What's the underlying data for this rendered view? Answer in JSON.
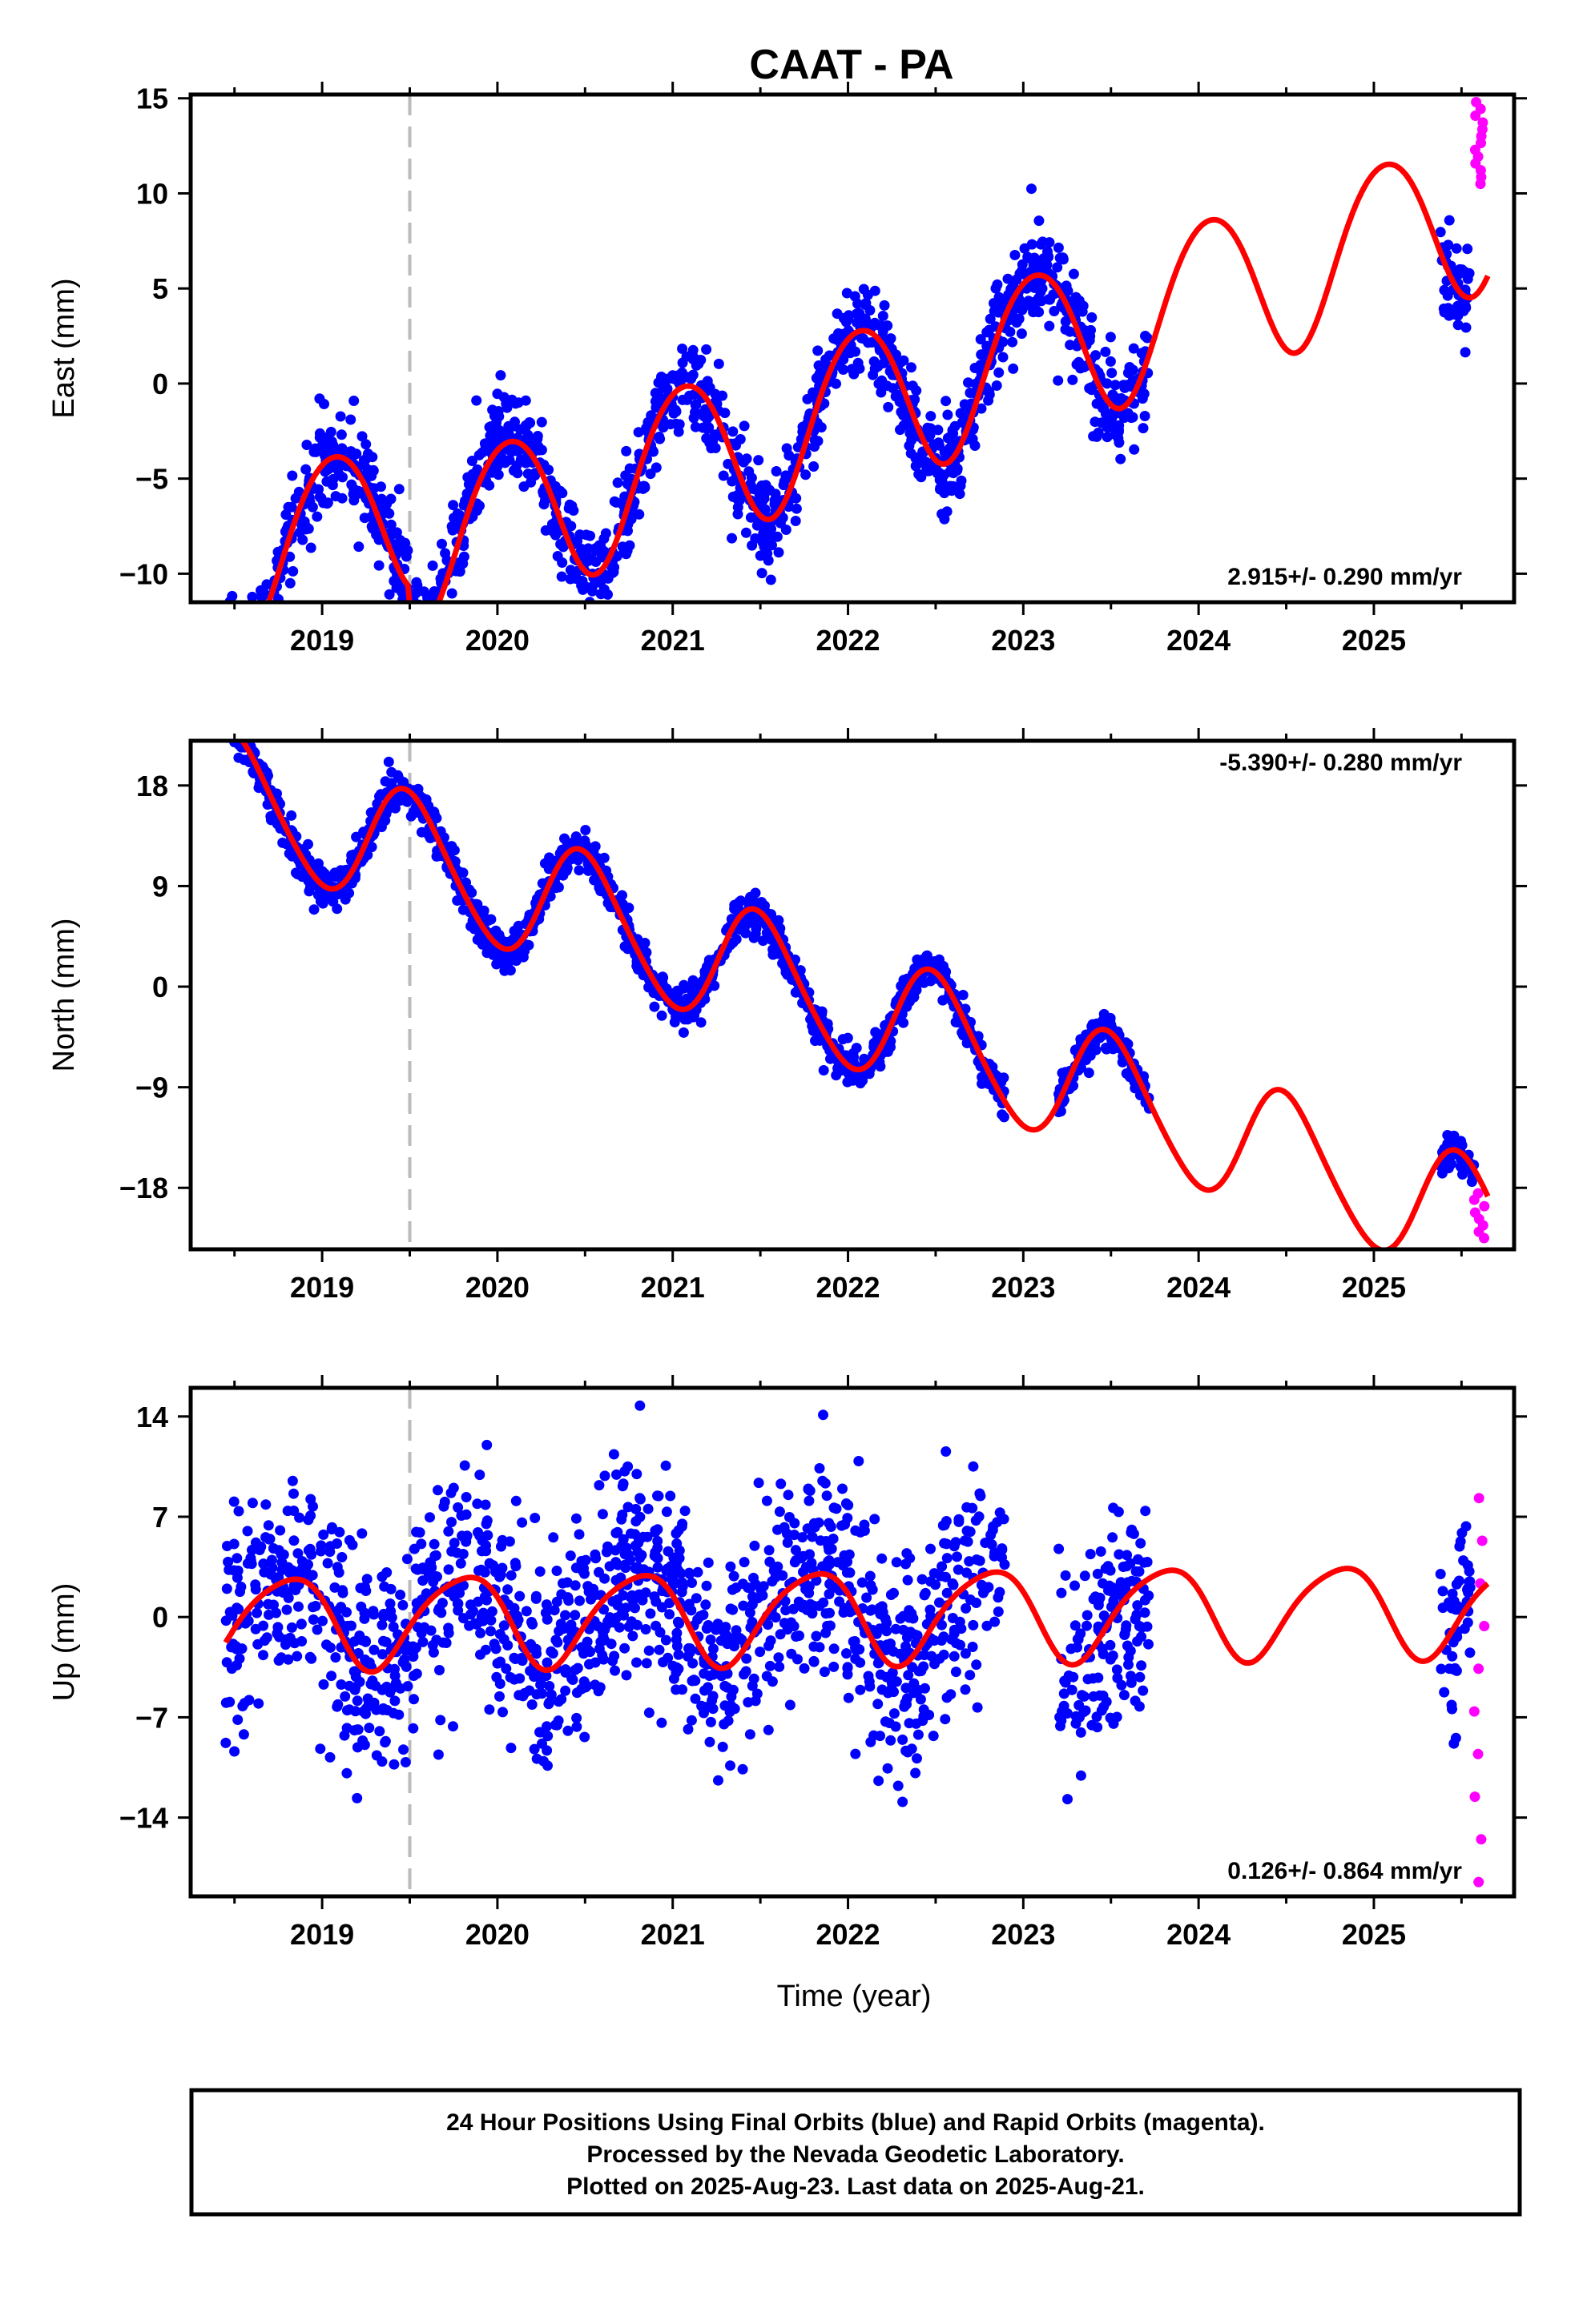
{
  "title": "CAAT - PA",
  "caption": {
    "line1": "24 Hour Positions Using Final Orbits (blue) and Rapid Orbits (magenta).",
    "line2": "Processed by the Nevada Geodetic Laboratory.",
    "line3": "Plotted on 2025-Aug-23. Last data on 2025-Aug-21."
  },
  "colors": {
    "final_orbits": "#0000ff",
    "rapid_orbits": "#ff00ff",
    "model_fit": "#ff0000",
    "marker_line": "#bbbbbb"
  },
  "chart_data": [
    {
      "type": "scatter",
      "component": "east",
      "title": "CAAT - PA",
      "xlabel": "",
      "ylabel": "East (mm)",
      "xlim": [
        2018.25,
        2025.8
      ],
      "ylim": [
        -11.5,
        15.2
      ],
      "x_ticks": [
        2019,
        2020,
        2021,
        2022,
        2023,
        2024,
        2025
      ],
      "x_tick_labels": [
        "2019",
        "2020",
        "2021",
        "2022",
        "2023",
        "2024",
        "2025"
      ],
      "y_ticks": [
        -10,
        -5,
        0,
        5,
        10,
        15
      ],
      "y_tick_labels": [
        "−10",
        "−5",
        "0",
        "5",
        "10",
        "15"
      ],
      "rate_label": "2.915+/- 0.290 mm/yr",
      "equipment_change": 2019.5,
      "fit": {
        "trend": [
          [
            2018.45,
            -9.5
          ],
          [
            2019.49,
            -6.6
          ],
          [
            2019.51,
            -8.6
          ],
          [
            2025.65,
            9.3
          ]
        ],
        "annual_amplitude": 4.2,
        "annual_peak": 2019.06,
        "semiannual_amplitude": 0.3,
        "semiannual_phase": 2019.3
      },
      "data_segments": [
        [
          2018.45,
          2019.49
        ],
        [
          2019.51,
          2023.72
        ],
        [
          2025.38,
          2025.55
        ]
      ],
      "noise_sd": 1.25,
      "rapid": {
        "x_range": [
          2025.57,
          2025.63
        ],
        "count": 13,
        "y_range": [
          10.5,
          14.8
        ]
      }
    },
    {
      "type": "scatter",
      "component": "north",
      "xlabel": "",
      "ylabel": "North (mm)",
      "xlim": [
        2018.25,
        2025.8
      ],
      "ylim": [
        -23.5,
        22
      ],
      "x_ticks": [
        2019,
        2020,
        2021,
        2022,
        2023,
        2024,
        2025
      ],
      "x_tick_labels": [
        "2019",
        "2020",
        "2021",
        "2022",
        "2023",
        "2024",
        "2025"
      ],
      "y_ticks": [
        -18,
        -9,
        0,
        9,
        18
      ],
      "y_tick_labels": [
        "−18",
        "−9",
        "0",
        "9",
        "18"
      ],
      "rate_label": "-5.390+/- 0.280 mm/yr",
      "equipment_change": 2019.5,
      "fit": {
        "trend": [
          [
            2018.45,
            17.4
          ],
          [
            2025.65,
            -21.4
          ]
        ],
        "annual_amplitude": 5.5,
        "annual_peak": 2019.5,
        "semiannual_amplitude": 0.6,
        "semiannual_phase": 2019.4
      },
      "data_segments": [
        [
          2018.45,
          2022.9
        ],
        [
          2023.2,
          2023.72
        ],
        [
          2025.38,
          2025.57
        ]
      ],
      "noise_sd": 0.9,
      "rapid": {
        "x_range": [
          2025.57,
          2025.63
        ],
        "count": 8,
        "y_range": [
          -22.5,
          -18.5
        ]
      }
    },
    {
      "type": "scatter",
      "component": "up",
      "xlabel": "Time (year)",
      "ylabel": "Up (mm)",
      "xlim": [
        2018.25,
        2025.8
      ],
      "ylim": [
        -19.5,
        16
      ],
      "x_ticks": [
        2019,
        2020,
        2021,
        2022,
        2023,
        2024,
        2025
      ],
      "x_tick_labels": [
        "2019",
        "2020",
        "2021",
        "2022",
        "2023",
        "2024",
        "2025"
      ],
      "y_ticks": [
        -14,
        -7,
        0,
        7,
        14
      ],
      "y_tick_labels": [
        "−14",
        "−7",
        "0",
        "7",
        "14"
      ],
      "rate_label": "0.126+/- 0.864 mm/yr",
      "equipment_change": 2019.5,
      "fit": {
        "trend": [
          [
            2018.45,
            -0.3
          ],
          [
            2025.65,
            0.6
          ]
        ],
        "annual_amplitude": 3.2,
        "annual_peak": 2019.8,
        "semiannual_amplitude": 0.5,
        "semiannual_phase": 2019.5
      },
      "data_segments": [
        [
          2018.45,
          2019.49
        ],
        [
          2019.51,
          2022.9
        ],
        [
          2023.2,
          2023.72
        ],
        [
          2025.38,
          2025.55
        ]
      ],
      "noise_sd": 3.8,
      "rapid": {
        "x_range": [
          2025.57,
          2025.63
        ],
        "count": 10,
        "y_range": [
          -18.5,
          8.3
        ]
      }
    }
  ]
}
